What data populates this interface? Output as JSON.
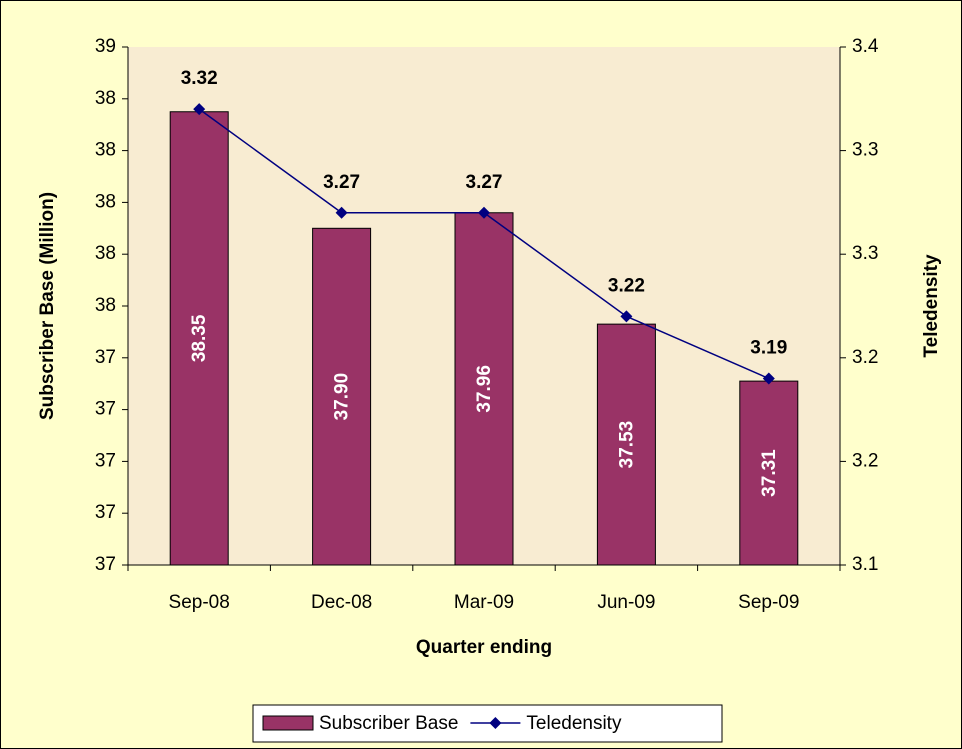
{
  "chart_data": {
    "type": "bar",
    "categories": [
      "Sep-08",
      "Dec-08",
      "Mar-09",
      "Jun-09",
      "Sep-09"
    ],
    "series": [
      {
        "name": "Subscriber Base",
        "type": "bar",
        "color": "#993366",
        "values": [
          38.35,
          37.9,
          37.96,
          37.53,
          37.31
        ],
        "value_labels": [
          "38.35",
          "37.90",
          "37.96",
          "37.53",
          "37.31"
        ]
      },
      {
        "name": "Teledensity",
        "type": "line",
        "axis": "y2",
        "color": "#000080",
        "values": [
          3.32,
          3.27,
          3.27,
          3.22,
          3.19
        ]
      }
    ],
    "ylabel": "Subscriber Base (Million)",
    "y2label": "Teledensity",
    "xlabel": "Quarter ending",
    "ylim": [
      36.6,
      38.6
    ],
    "yticks": [
      {
        "value": 36.6,
        "label": "37"
      },
      {
        "value": 36.8,
        "label": "37"
      },
      {
        "value": 37.0,
        "label": "37"
      },
      {
        "value": 37.2,
        "label": "37"
      },
      {
        "value": 37.4,
        "label": "37"
      },
      {
        "value": 37.6,
        "label": "38"
      },
      {
        "value": 37.8,
        "label": "38"
      },
      {
        "value": 38.0,
        "label": "38"
      },
      {
        "value": 38.2,
        "label": "38"
      },
      {
        "value": 38.4,
        "label": "38"
      },
      {
        "value": 38.6,
        "label": "39"
      }
    ],
    "y2lim": [
      3.1,
      3.35
    ],
    "y2ticks": [
      3.1,
      {
        "value": 3.15,
        "label": "3.2"
      },
      3.2,
      {
        "value": 3.25,
        "label": "3.3"
      },
      3.3,
      {
        "value": 3.35,
        "label": "3.4"
      }
    ],
    "legend": "bottom"
  }
}
